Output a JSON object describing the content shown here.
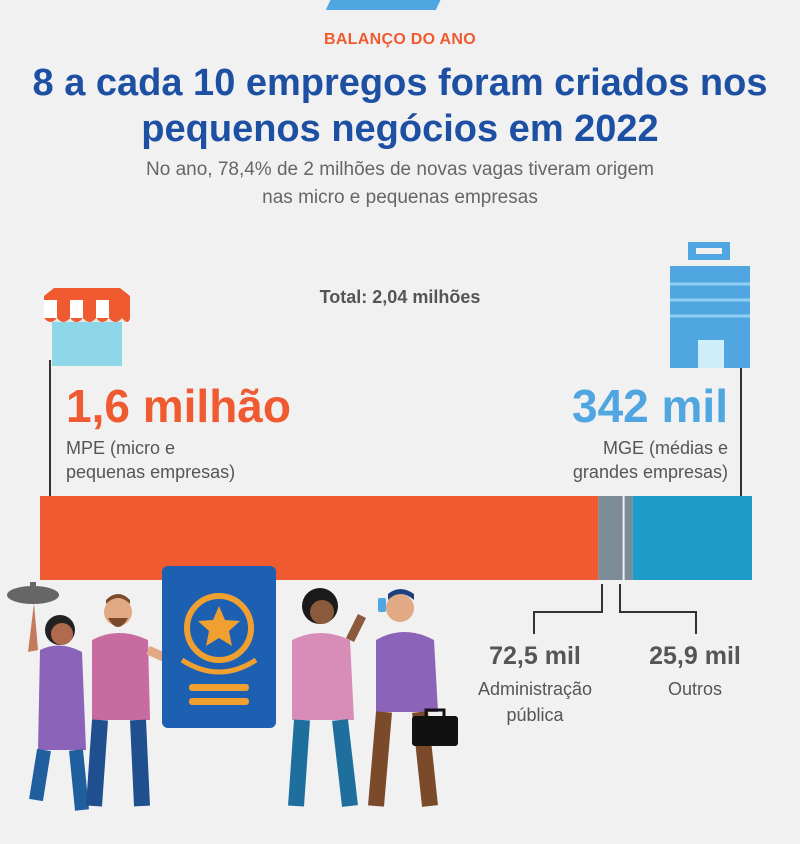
{
  "header": {
    "kicker": "BALANÇO DO ANO",
    "title_line1": "8 a cada 10 empregos foram criados nos",
    "title_line2": "pequenos negócios em 2022",
    "subtitle_line1": "No ano, 78,4% de 2 milhões de novas vagas tiveram origem",
    "subtitle_line2": "nas micro e pequenas empresas"
  },
  "total_label": "Total: 2,04 milhões",
  "chart_data": {
    "type": "bar",
    "orientation": "horizontal-stacked",
    "unit": "vagas",
    "total": 2040000,
    "segments": [
      {
        "key": "mpe",
        "value_label": "1,6 milhão",
        "label_line1": "MPE (micro e",
        "label_line2": "pequenas empresas)",
        "value": 1600000,
        "color": "#f05a30"
      },
      {
        "key": "adm",
        "value_label": "72,5 mil",
        "label_line1": "Administração",
        "label_line2": "pública",
        "value": 72500,
        "color": "#7b8c96"
      },
      {
        "key": "outros",
        "value_label": "25,9 mil",
        "label_line1": "Outros",
        "label_line2": "",
        "value": 25900,
        "color": "#7b8c96"
      },
      {
        "key": "mge",
        "value_label": "342 mil",
        "label_line1": "MGE (médias e",
        "label_line2": "grandes empresas)",
        "value": 342000,
        "color": "#1e9bc8"
      }
    ]
  },
  "icons": {
    "left": "storefront-icon",
    "right": "office-building-icon",
    "illustration": "people-with-employment-card"
  }
}
